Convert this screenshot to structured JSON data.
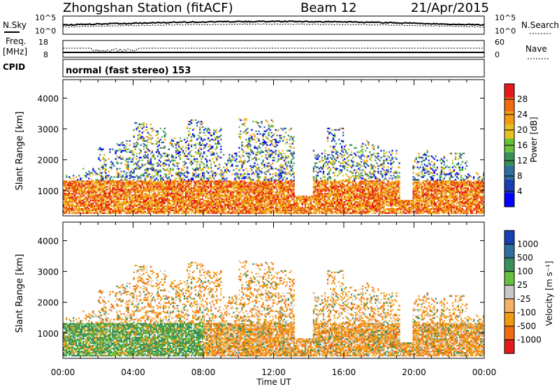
{
  "header": {
    "title": "Zhongshan Station (fitACF)",
    "beam": "Beam 12",
    "date": "21/Apr/2015"
  },
  "top_panels": {
    "nsky_label": "N.Sky",
    "nsearch_label": "N.Search",
    "noise_ticks_left": [
      "10^5",
      "10^0"
    ],
    "noise_ticks_right": [
      "10^5",
      "10^0"
    ],
    "freq_label_1": "Freq.",
    "freq_label_2": "[MHz]",
    "freq_ticks": [
      "18",
      "8"
    ],
    "nave_label": "Nave",
    "nave_ticks": [
      "60",
      "0"
    ],
    "cpid_label": "CPID",
    "cpid_text": "normal (fast stereo) 153"
  },
  "colors": {
    "power_scale": [
      "#0000ff",
      "#1a3fb0",
      "#2e6f9e",
      "#3a8f5a",
      "#66c23a",
      "#e8c020",
      "#f39b10",
      "#f06a10",
      "#e41a1c"
    ],
    "velocity_scale": [
      "#e41a1c",
      "#f06a10",
      "#f39b10",
      "#f5b060",
      "#c8c8c8",
      "#66c23a",
      "#3a8f5a",
      "#2e6f9e",
      "#1a3fb0"
    ]
  },
  "chart_data": [
    {
      "type": "heatmap",
      "panel": "power",
      "xlabel": "",
      "ylabel": "Slant Range [km]",
      "x_ticks": [
        "00:00",
        "04:00",
        "08:00",
        "12:00",
        "16:00",
        "20:00",
        "00:00"
      ],
      "y_ticks": [
        1000,
        2000,
        3000,
        4000
      ],
      "ylim": [
        180,
        4600
      ],
      "colorbar_label": "Power [dB]",
      "colorbar_ticks": [
        "4",
        "8",
        "12",
        "16",
        "20",
        "24",
        "28"
      ],
      "clim": [
        0,
        32
      ]
    },
    {
      "type": "heatmap",
      "panel": "velocity",
      "xlabel": "Time UT",
      "ylabel": "Slant Range [km]",
      "x_ticks": [
        "00:00",
        "04:00",
        "08:00",
        "12:00",
        "16:00",
        "20:00",
        "00:00"
      ],
      "y_ticks": [
        1000,
        2000,
        3000,
        4000
      ],
      "ylim": [
        180,
        4600
      ],
      "colorbar_label": "Velocity [m s⁻¹]",
      "colorbar_ticks": [
        "1000",
        "500",
        "100",
        "25",
        "-25",
        "-100",
        "-500",
        "-1000"
      ]
    }
  ]
}
